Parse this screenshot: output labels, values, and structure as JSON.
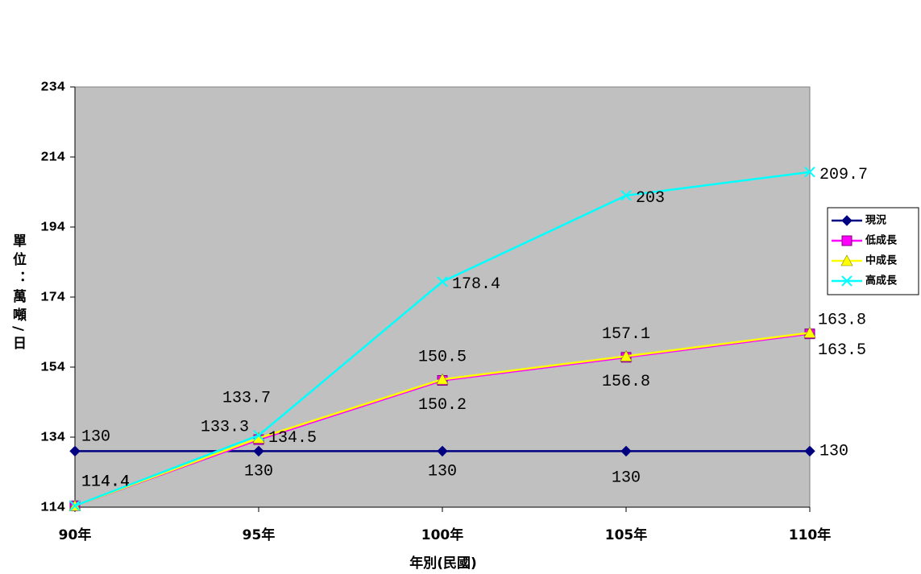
{
  "chart_data": {
    "type": "line",
    "x_label": "年別(民國)",
    "y_label": "單位：萬噸/日",
    "categories": [
      "90年",
      "95年",
      "100年",
      "105年",
      "110年"
    ],
    "ylim": [
      114,
      234
    ],
    "yticks": [
      114,
      134,
      154,
      174,
      194,
      214,
      234
    ],
    "background": "#c0c0c0",
    "legend": "right",
    "series": [
      {
        "name": "現況",
        "color": "#000080",
        "marker": "diamond",
        "values": [
          130,
          130,
          130,
          130,
          130
        ]
      },
      {
        "name": "低成長",
        "color": "#ff00ff",
        "marker": "square",
        "values": [
          114.4,
          133.3,
          150.2,
          156.8,
          163.5
        ]
      },
      {
        "name": "中成長",
        "color": "#ffff00",
        "marker": "triangle",
        "values": [
          114.4,
          133.7,
          150.5,
          157.1,
          163.8
        ]
      },
      {
        "name": "高成長",
        "color": "#00ffff",
        "marker": "x",
        "values": [
          114.4,
          134.5,
          178.4,
          203,
          209.7
        ]
      }
    ]
  }
}
